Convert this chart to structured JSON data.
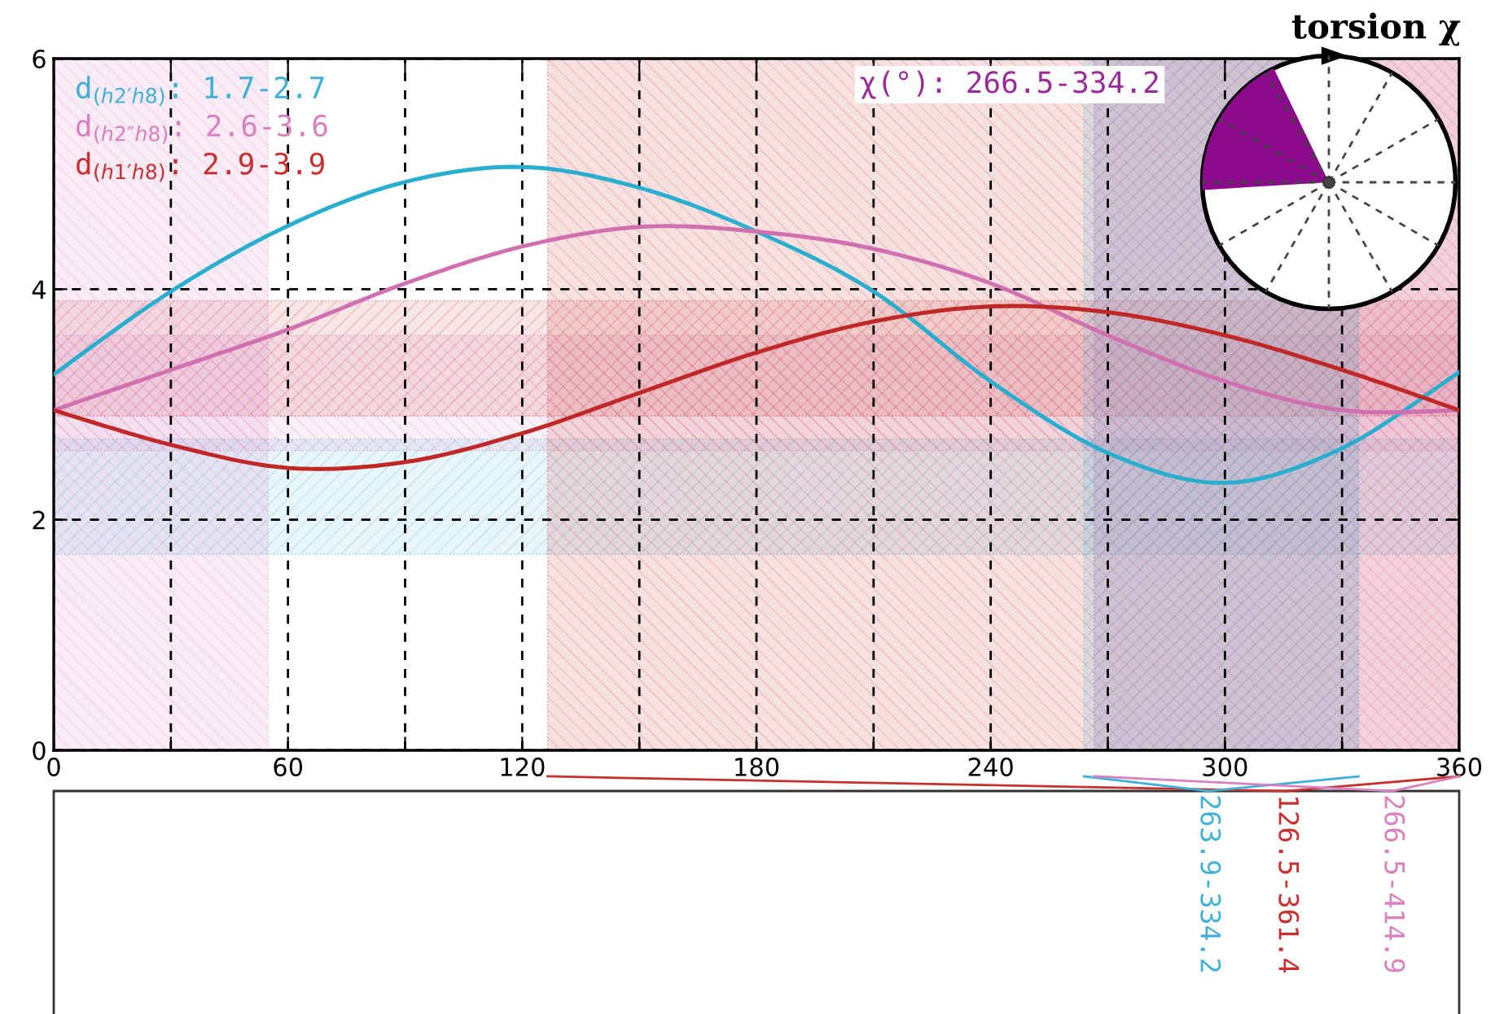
{
  "chart_data": {
    "type": "line",
    "x": [
      0,
      30,
      60,
      90,
      120,
      150,
      180,
      210,
      240,
      270,
      300,
      330,
      360
    ],
    "series": [
      {
        "color": "#2aaed0",
        "values": [
          3.26,
          3.98,
          4.55,
          4.93,
          5.06,
          4.88,
          4.5,
          3.98,
          3.2,
          2.58,
          2.32,
          2.62,
          3.28
        ]
      },
      {
        "color": "#d070b0",
        "values": [
          2.95,
          3.3,
          3.65,
          4.05,
          4.37,
          4.54,
          4.5,
          4.35,
          4.05,
          3.6,
          3.2,
          2.95,
          2.95
        ]
      },
      {
        "color": "#c02828",
        "values": [
          2.95,
          2.65,
          2.45,
          2.5,
          2.75,
          3.1,
          3.45,
          3.72,
          3.85,
          3.8,
          3.6,
          3.3,
          2.95
        ]
      }
    ],
    "xlim": [
      0,
      360
    ],
    "xticks": [
      0,
      {
        "value": 30,
        "label": null
      },
      60,
      {
        "value": 90,
        "label": null
      },
      120,
      {
        "value": 150,
        "label": null
      },
      180,
      {
        "value": 210,
        "label": null
      },
      240,
      {
        "value": 270,
        "label": null
      },
      300,
      {
        "value": 330,
        "label": null
      },
      360
    ],
    "ylim": [
      0,
      6
    ],
    "yticks": [
      0,
      2,
      4,
      6
    ],
    "grid": true,
    "line_style": "solid",
    "marker": "none",
    "bands": [
      {
        "axis": "y",
        "from": 1.7,
        "to": 2.7,
        "label": "d$_{(h2′h8)}$: 1.7-2.7",
        "color": "#40b0d8"
      },
      {
        "axis": "y",
        "from": 2.6,
        "to": 3.6,
        "label": "d$_{(h2″h8)}$: 2.6-3.6",
        "color": "#d880c0"
      },
      {
        "axis": "y",
        "from": 2.9,
        "to": 3.9,
        "label": "d$_{(h1′h8)}$: 2.9-3.9",
        "color": "#c83030"
      },
      {
        "axis": "x",
        "from": 126.5,
        "to": 360,
        "label": "126.5-361.4",
        "color": "#c83030"
      },
      {
        "axis": "x",
        "from": 263.9,
        "to": 334.2,
        "label": "263.9-334.2",
        "color": "#40b0d8"
      },
      {
        "axis": "x",
        "from": 266.5,
        "to": 360,
        "label": "266.5-414.9",
        "color": "#d880c0"
      },
      {
        "axis": "x",
        "from": 0,
        "to": 54.9,
        "color": "#d880c0"
      },
      {
        "axis": "x",
        "from": 266.5,
        "to": 334.2,
        "color": "#8c9ab0"
      }
    ],
    "annotations": [
      "torsion χ",
      "χ(°): 266.5-334.2"
    ]
  }
}
